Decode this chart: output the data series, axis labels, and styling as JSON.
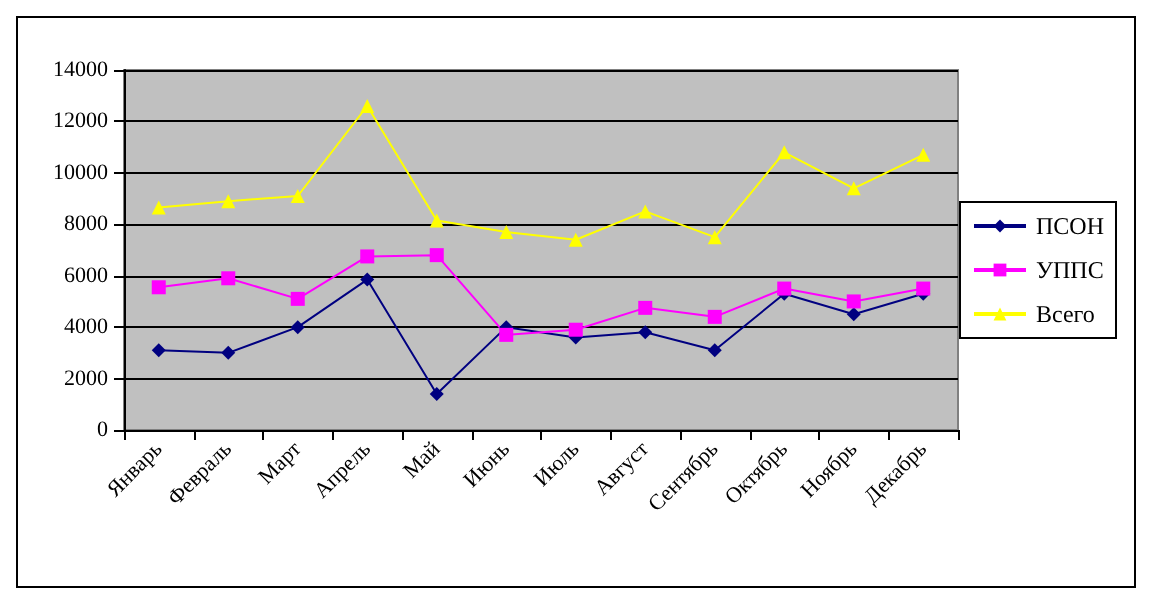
{
  "chart_data": {
    "type": "line",
    "categories": [
      "Январь",
      "Февраль",
      "Март",
      "Апрель",
      "Май",
      "Июнь",
      "Июль",
      "Август",
      "Сентябрь",
      "Октябрь",
      "Ноябрь",
      "Декабрь"
    ],
    "series": [
      {
        "name": "ПСОН",
        "color": "#000080",
        "marker": "diamond",
        "values": [
          3100,
          3000,
          4000,
          5850,
          1400,
          4000,
          3600,
          3800,
          3100,
          5300,
          4500,
          5300
        ]
      },
      {
        "name": "УППС",
        "color": "#ff00ff",
        "marker": "square",
        "values": [
          5550,
          5900,
          5100,
          6750,
          6800,
          3700,
          3900,
          4750,
          4400,
          5500,
          5000,
          5500
        ]
      },
      {
        "name": "Всего",
        "color": "#ffff00",
        "marker": "triangle",
        "values": [
          8650,
          8900,
          9100,
          12600,
          8150,
          7700,
          7400,
          8500,
          7500,
          10800,
          9400,
          10700
        ]
      }
    ],
    "ylim": [
      0,
      14000
    ],
    "yticks": [
      0,
      2000,
      4000,
      6000,
      8000,
      10000,
      12000,
      14000
    ],
    "grid": "y",
    "legend": "right"
  }
}
